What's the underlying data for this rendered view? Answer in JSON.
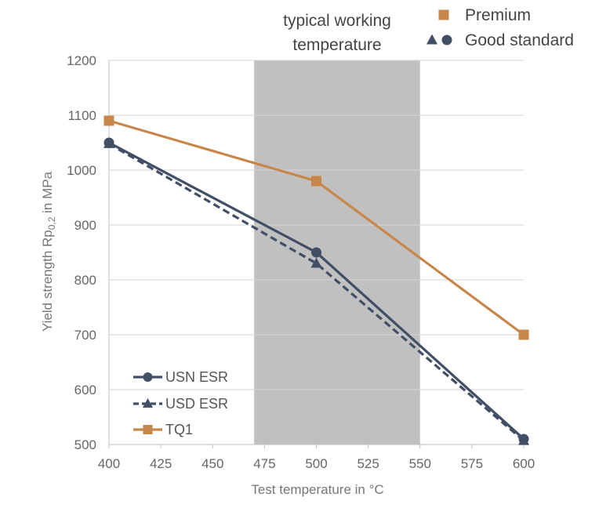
{
  "chart_data": {
    "type": "line",
    "xlabel": "Test temperature in °C",
    "ylabel_main": "Yield strength Rp",
    "ylabel_sub": "0,2",
    "ylabel_tail": " in MPa",
    "xlim": [
      400,
      600
    ],
    "ylim": [
      500,
      1200
    ],
    "x_ticks": [
      400,
      425,
      450,
      475,
      500,
      525,
      550,
      575,
      600
    ],
    "y_ticks": [
      500,
      600,
      700,
      800,
      900,
      1000,
      1100,
      1200
    ],
    "grid": "horizontal",
    "band": {
      "x_start": 470,
      "x_end": 550,
      "label_line1": "typical working",
      "label_line2": "temperature",
      "color": "#c0c0c0"
    },
    "x": [
      400,
      500,
      600
    ],
    "series": [
      {
        "name": "USN ESR",
        "values": [
          1050,
          850,
          510
        ],
        "color": "#414f66",
        "dash": "solid",
        "marker": "circle"
      },
      {
        "name": "USD ESR",
        "values": [
          1048,
          830,
          507
        ],
        "color": "#414f66",
        "dash": "dashed",
        "marker": "triangle"
      },
      {
        "name": "TQ1",
        "values": [
          1090,
          980,
          700
        ],
        "color": "#c8874a",
        "dash": "solid",
        "marker": "square"
      }
    ],
    "legend_position": "bottom-left",
    "category_legend": [
      {
        "label": "Premium",
        "markers": [
          "square"
        ],
        "color": "#c8874a"
      },
      {
        "label": "Good standard",
        "markers": [
          "triangle",
          "circle"
        ],
        "color": "#414f66"
      }
    ]
  }
}
